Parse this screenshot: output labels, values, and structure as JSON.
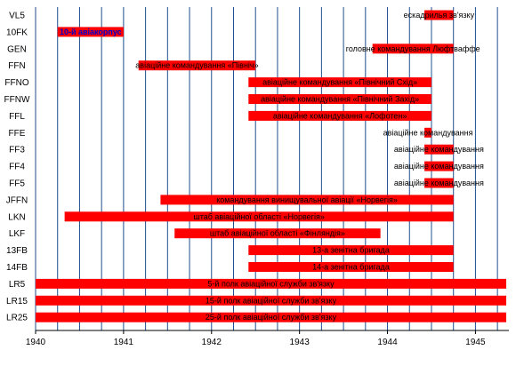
{
  "chart_data": {
    "type": "gantt",
    "title": "",
    "xlabel": "",
    "ylabel": "",
    "x_range": [
      1940.0,
      1945.38
    ],
    "x_ticks": [
      "1940",
      "1941",
      "1942",
      "1943",
      "1944",
      "1945"
    ],
    "grid": "vertical",
    "colors": {
      "bar": "#ff0000",
      "grid": "#1f4f8f",
      "axis": "#000000",
      "label": "#000000",
      "highlight_label": "#0000cc"
    },
    "rows": [
      {
        "code": "VL5",
        "start": 1944.42,
        "end": 1944.75,
        "label": "ескадрилья зв'язку"
      },
      {
        "code": "10FK",
        "start": 1940.25,
        "end": 1941.0,
        "label": "10-й авіакорпус",
        "label_color": "#0000cc"
      },
      {
        "code": "GEN",
        "start": 1943.83,
        "end": 1944.75,
        "label": "головне командування Люфтваффе"
      },
      {
        "code": "FFN",
        "start": 1941.17,
        "end": 1942.5,
        "label": "авіаційне командування «Північ»"
      },
      {
        "code": "FFNO",
        "start": 1942.42,
        "end": 1944.5,
        "label": "авіаційне командування «Північний Схід»"
      },
      {
        "code": "FFNW",
        "start": 1942.42,
        "end": 1944.5,
        "label": "авіаційне командування «Північний Захід»"
      },
      {
        "code": "FFL",
        "start": 1942.42,
        "end": 1944.5,
        "label": "авіаційне командування «Лофотен»"
      },
      {
        "code": "FFE",
        "start": 1944.42,
        "end": 1944.5,
        "label": "авіаційне командування"
      },
      {
        "code": "FF3",
        "start": 1944.42,
        "end": 1944.75,
        "label": "авіаційне командування"
      },
      {
        "code": "FF4",
        "start": 1944.42,
        "end": 1944.75,
        "label": "авіаційне командування"
      },
      {
        "code": "FF5",
        "start": 1944.42,
        "end": 1944.75,
        "label": "авіаційне командування"
      },
      {
        "code": "JFFN",
        "start": 1941.42,
        "end": 1944.75,
        "label": "командування винищувальної авіації «Норвегія»"
      },
      {
        "code": "LKN",
        "start": 1940.33,
        "end": 1944.75,
        "label": "штаб авіаційної області «Норвегія»"
      },
      {
        "code": "LKF",
        "start": 1941.58,
        "end": 1943.92,
        "label": "штаб авіаційної області «Фінляндія»"
      },
      {
        "code": "13FB",
        "start": 1942.42,
        "end": 1944.75,
        "label": "13-а зенітна бригада"
      },
      {
        "code": "14FB",
        "start": 1942.42,
        "end": 1944.75,
        "label": "14-а зенітна бригада"
      },
      {
        "code": "LR5",
        "start": 1940.0,
        "end": 1945.35,
        "label": "5-й полк авіаційної служби зв'язку"
      },
      {
        "code": "LR15",
        "start": 1940.0,
        "end": 1945.35,
        "label": "15-й полк авіаційної служби зв'язку"
      },
      {
        "code": "LR25",
        "start": 1940.0,
        "end": 1945.35,
        "label": "25-й полк авіаційної служби зв'язку"
      }
    ]
  }
}
